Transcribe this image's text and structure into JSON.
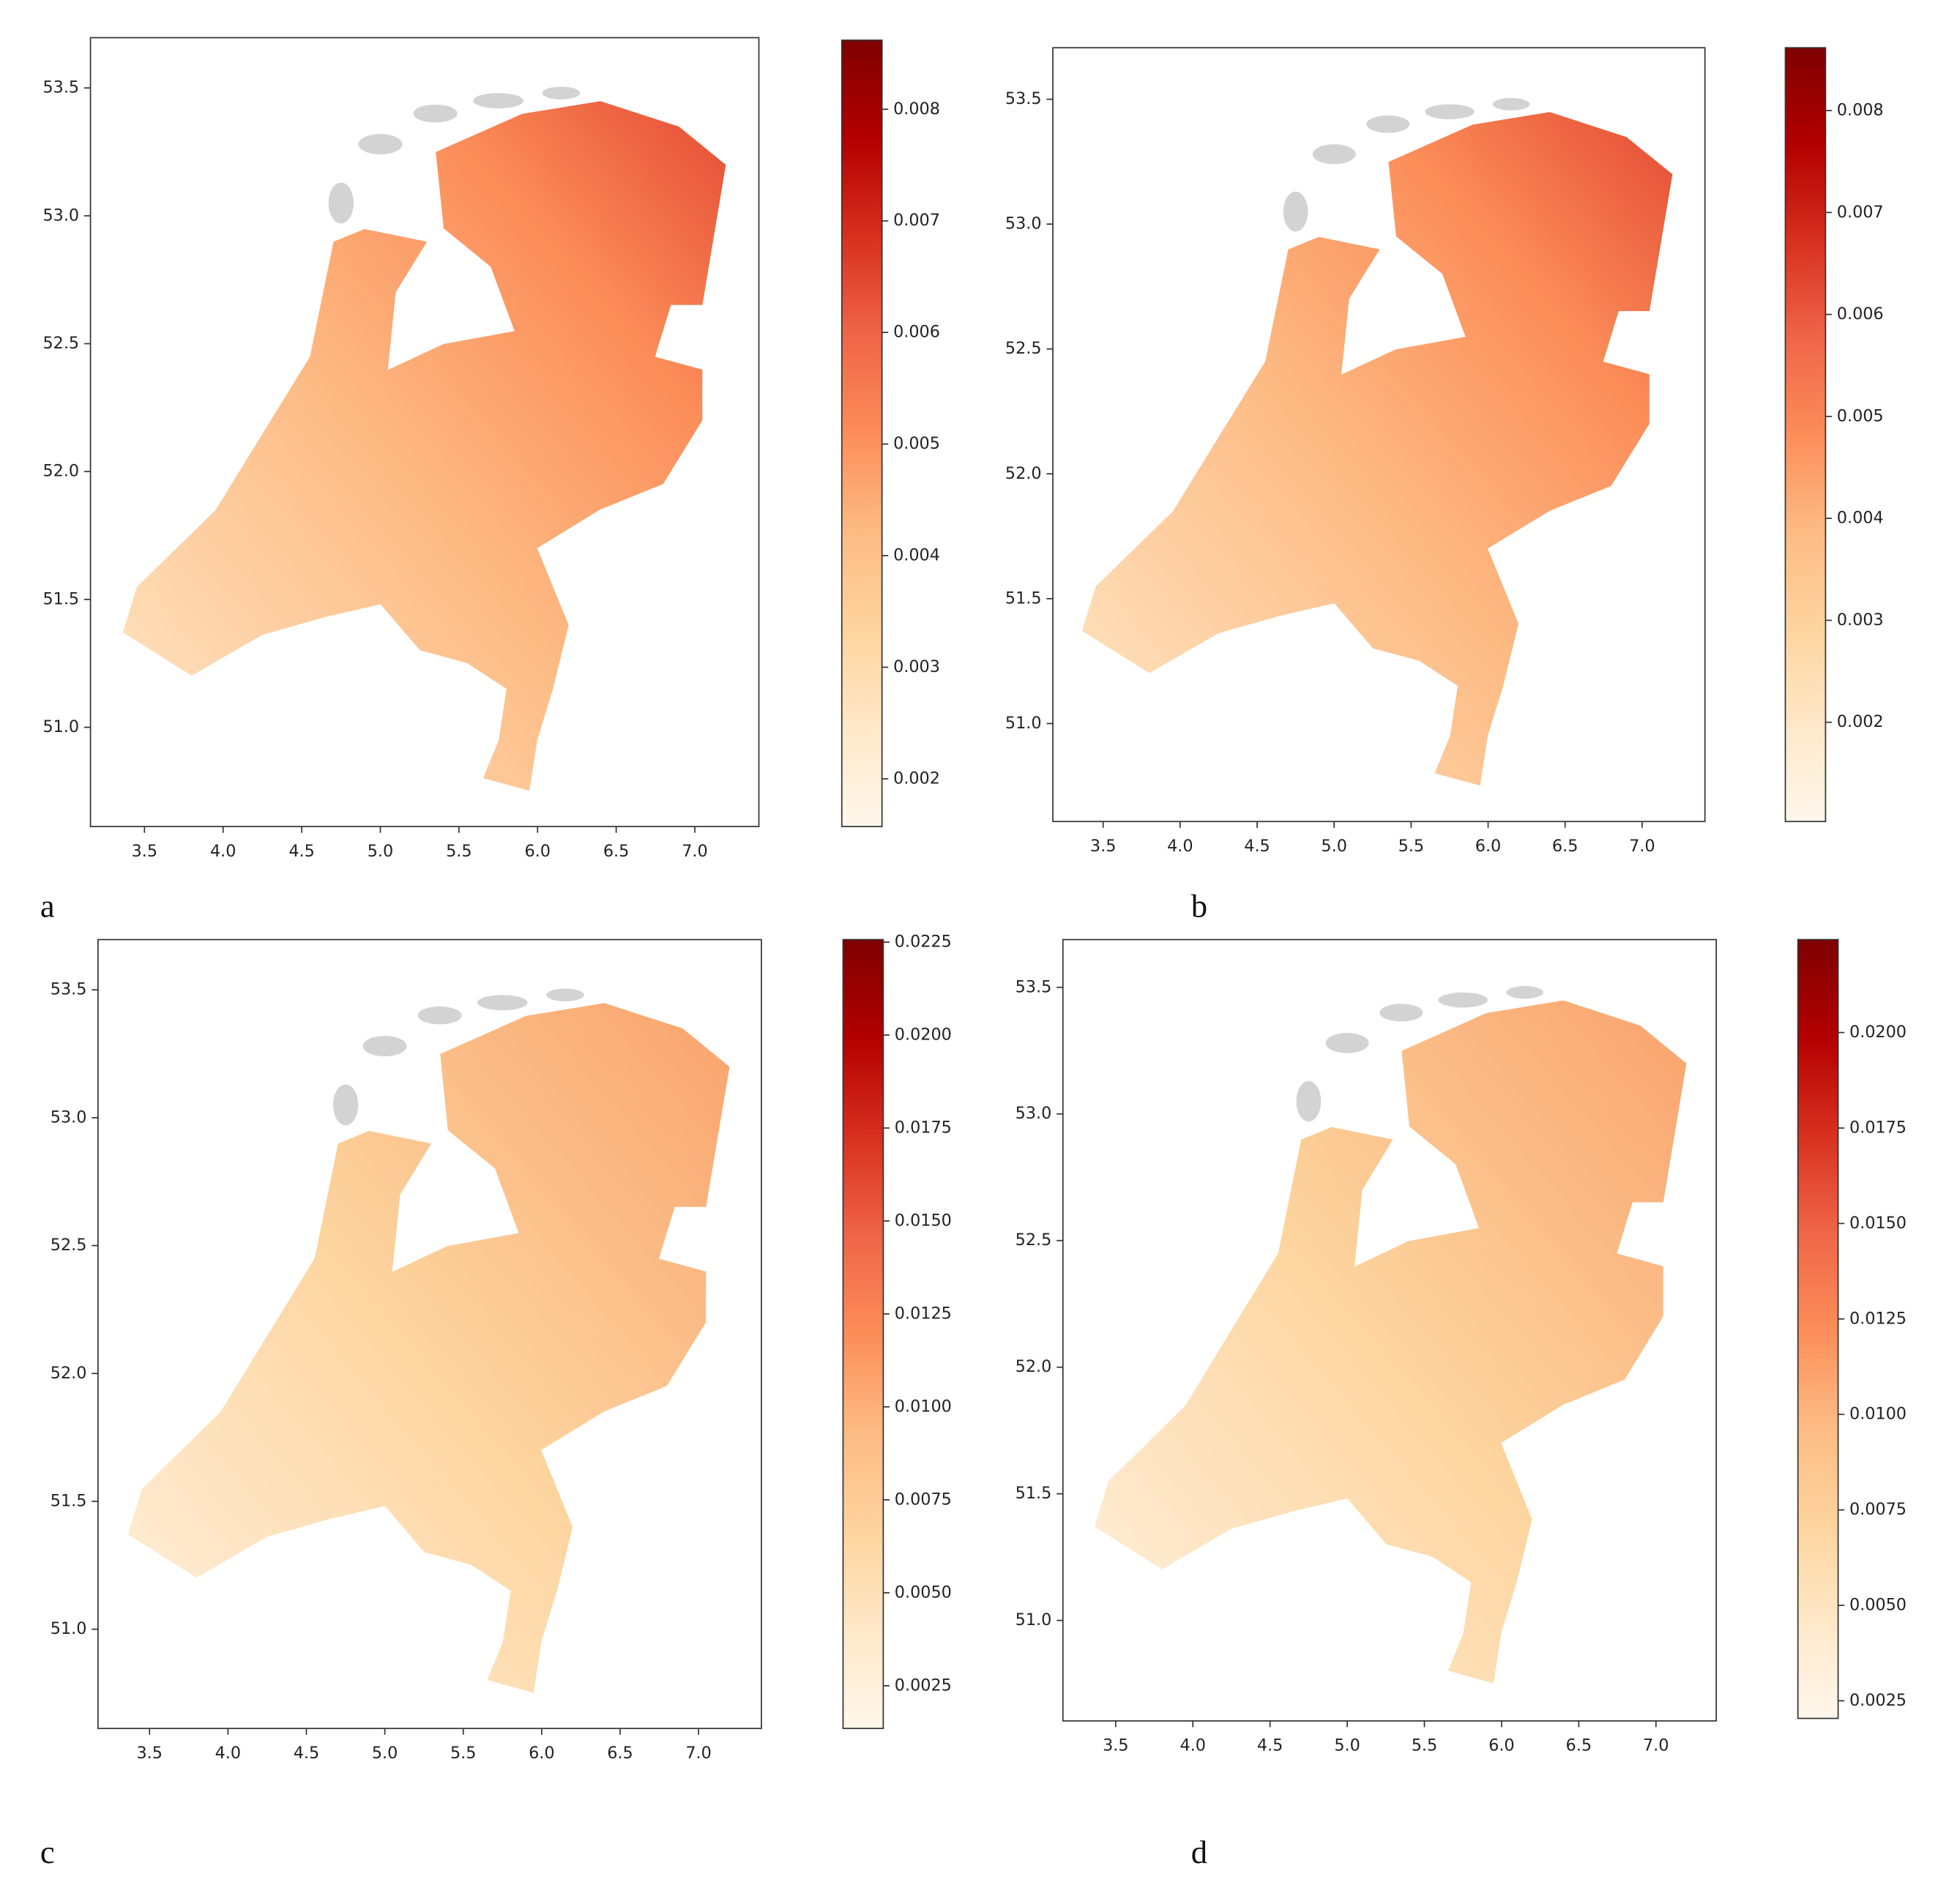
{
  "panels": [
    {
      "label": "a",
      "xticks": [
        3.5,
        {
          "value": 4.0,
          "label": "4.0"
        },
        4.5,
        {
          "value": 5.0,
          "label": "5.0"
        },
        5.5,
        {
          "value": 6.0,
          "label": "6.0"
        },
        6.5,
        {
          "value": 7.0,
          "label": "7.0"
        }
      ],
      "yticks": [
        {
          "value": 51.0,
          "label": "51.0"
        },
        51.5,
        {
          "value": 52.0,
          "label": "52.0"
        },
        52.5,
        {
          "value": 53.0,
          "label": "53.0"
        },
        53.5
      ],
      "colorbar_ticks": [
        0.002,
        0.003,
        0.004,
        0.005,
        0.006,
        0.007,
        0.008
      ]
    },
    {
      "label": "b",
      "xticks": [
        3.5,
        {
          "value": 4.0,
          "label": "4.0"
        },
        4.5,
        {
          "value": 5.0,
          "label": "5.0"
        },
        5.5,
        {
          "value": 6.0,
          "label": "6.0"
        },
        6.5,
        {
          "value": 7.0,
          "label": "7.0"
        }
      ],
      "yticks": [
        {
          "value": 51.0,
          "label": "51.0"
        },
        51.5,
        {
          "value": 52.0,
          "label": "52.0"
        },
        52.5,
        {
          "value": 53.0,
          "label": "53.0"
        },
        53.5
      ],
      "colorbar_ticks": [
        0.002,
        0.003,
        0.004,
        0.005,
        0.006,
        0.007,
        0.008
      ]
    },
    {
      "label": "c",
      "xticks": [
        3.5,
        {
          "value": 4.0,
          "label": "4.0"
        },
        4.5,
        {
          "value": 5.0,
          "label": "5.0"
        },
        5.5,
        {
          "value": 6.0,
          "label": "6.0"
        },
        6.5,
        {
          "value": 7.0,
          "label": "7.0"
        }
      ],
      "yticks": [
        {
          "value": 51.0,
          "label": "51.0"
        },
        51.5,
        {
          "value": 52.0,
          "label": "52.0"
        },
        52.5,
        {
          "value": 53.0,
          "label": "53.0"
        },
        53.5
      ],
      "colorbar_ticks": [
        0.0025,
        {
          "value": 0.005,
          "label": "0.0050"
        },
        0.0075,
        {
          "value": 0.01,
          "label": "0.0100"
        },
        0.0125,
        {
          "value": 0.015,
          "label": "0.0150"
        },
        0.0175,
        {
          "value": 0.02,
          "label": "0.0200"
        },
        0.0225
      ]
    },
    {
      "label": "d",
      "xticks": [
        3.5,
        {
          "value": 4.0,
          "label": "4.0"
        },
        4.5,
        {
          "value": 5.0,
          "label": "5.0"
        },
        5.5,
        {
          "value": 6.0,
          "label": "6.0"
        },
        6.5,
        {
          "value": 7.0,
          "label": "7.0"
        }
      ],
      "yticks": [
        {
          "value": 51.0,
          "label": "51.0"
        },
        51.5,
        {
          "value": 52.0,
          "label": "52.0"
        },
        52.5,
        {
          "value": 53.0,
          "label": "53.0"
        },
        53.5
      ],
      "colorbar_ticks": [
        0.0025,
        {
          "value": 0.005,
          "label": "0.0050"
        },
        0.0075,
        {
          "value": 0.01,
          "label": "0.0100"
        },
        0.0125,
        {
          "value": 0.015,
          "label": "0.0150"
        },
        0.0175,
        {
          "value": 0.02,
          "label": "0.0200"
        }
      ]
    }
  ]
}
